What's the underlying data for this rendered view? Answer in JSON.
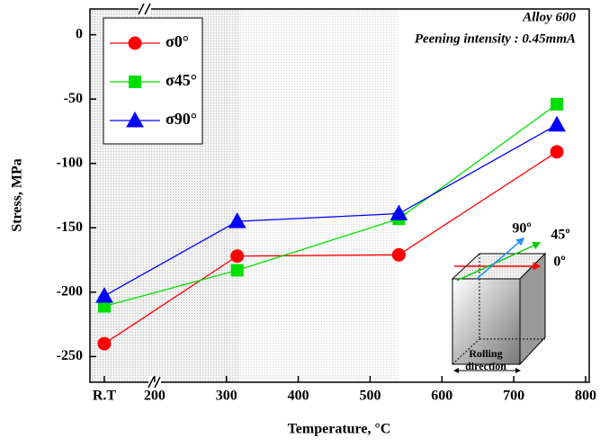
{
  "chart_data": {
    "type": "line",
    "xlabel": "Temperature, °C",
    "ylabel": "Stress, MPa",
    "annotations": [
      "Alloy 600",
      "Peening intensity : 0.45mmA",
      "90º",
      "45º",
      "0º",
      "Rolling",
      "direction"
    ],
    "x": [
      130,
      315,
      540,
      760
    ],
    "series": [
      {
        "name": "σ0°",
        "color": "#ff0000",
        "marker": "circle",
        "values": [
          -240,
          -172,
          -171,
          -91
        ]
      },
      {
        "name": "σ45°",
        "color": "#00e000",
        "marker": "square",
        "values": [
          -211,
          -183,
          -143,
          -54
        ]
      },
      {
        "name": "σ90°",
        "color": "#0000ff",
        "marker": "triangle",
        "values": [
          -203,
          -145,
          -139,
          -70
        ]
      }
    ],
    "xlim": [
      110,
      805
    ],
    "ylim": [
      -270,
      20
    ],
    "xticks": [
      {
        "value": 130,
        "label": "R.T"
      },
      200,
      300,
      400,
      500,
      600,
      700,
      800
    ],
    "yticks": [
      0,
      -50,
      -100,
      -150,
      -200,
      -250
    ],
    "legend": "upper left"
  }
}
